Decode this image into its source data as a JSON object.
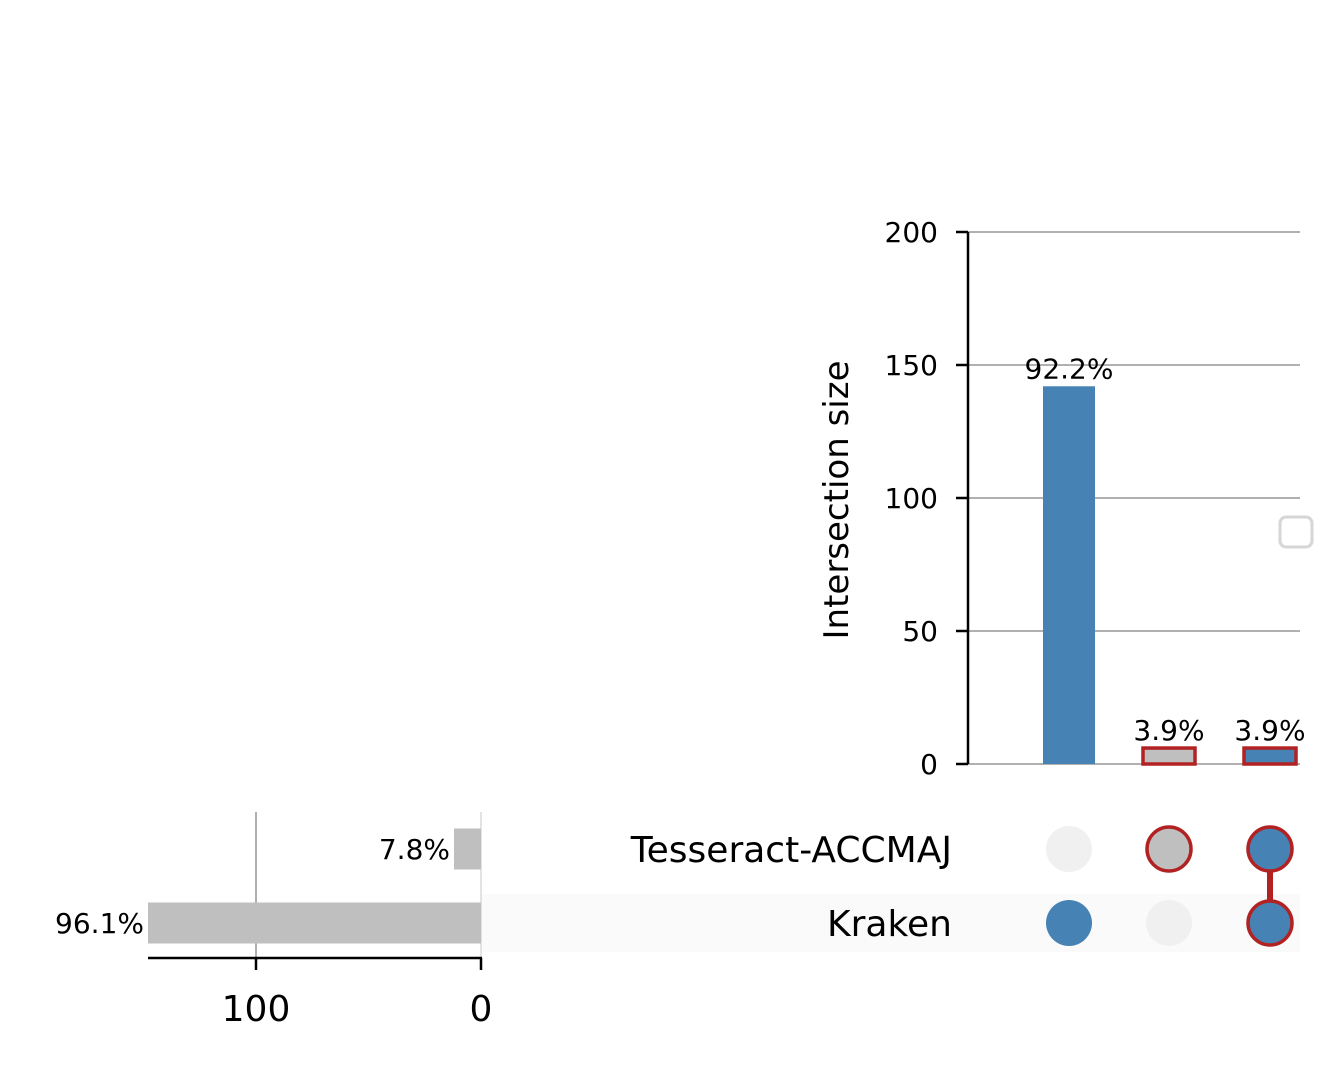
{
  "colors": {
    "bar_blue": "#4682b4",
    "bar_grey": "#bfbfbf",
    "highlight_red": "#b22222",
    "dot_inactive": "#f0f0f0",
    "grid": "#b0b0b0",
    "row_stripe": "#fafafa"
  },
  "chart_data": {
    "type": "upset",
    "title": "",
    "sets": [
      {
        "name": "Tesseract-ACCMAJ",
        "size": 12,
        "label": "7.8%"
      },
      {
        "name": "Kraken",
        "size": 148,
        "label": "96.1%"
      }
    ],
    "intersections": [
      {
        "members": [
          "Kraken"
        ],
        "size": 142,
        "label": "92.2%",
        "fill": "bar_blue",
        "outline": false
      },
      {
        "members": [
          "Tesseract-ACCMAJ"
        ],
        "size": 6,
        "label": "3.9%",
        "fill": "bar_grey",
        "outline": true
      },
      {
        "members": [
          "Tesseract-ACCMAJ",
          "Kraken"
        ],
        "size": 6,
        "label": "3.9%",
        "fill": "bar_blue",
        "outline": true
      }
    ],
    "intersection_axis": {
      "label": "Intersection size",
      "ylim": [
        0,
        200
      ],
      "ticks": [
        0,
        50,
        100,
        150,
        200
      ],
      "tick_labels": [
        "0",
        "50",
        "100",
        "150",
        "200"
      ],
      "grid": true
    },
    "set_size_axis": {
      "ticks": [
        100,
        0
      ],
      "tick_labels": [
        "100",
        "0"
      ],
      "xlim": [
        148,
        0
      ],
      "grid": true
    },
    "legend": {
      "placement": "right",
      "entries": []
    }
  }
}
